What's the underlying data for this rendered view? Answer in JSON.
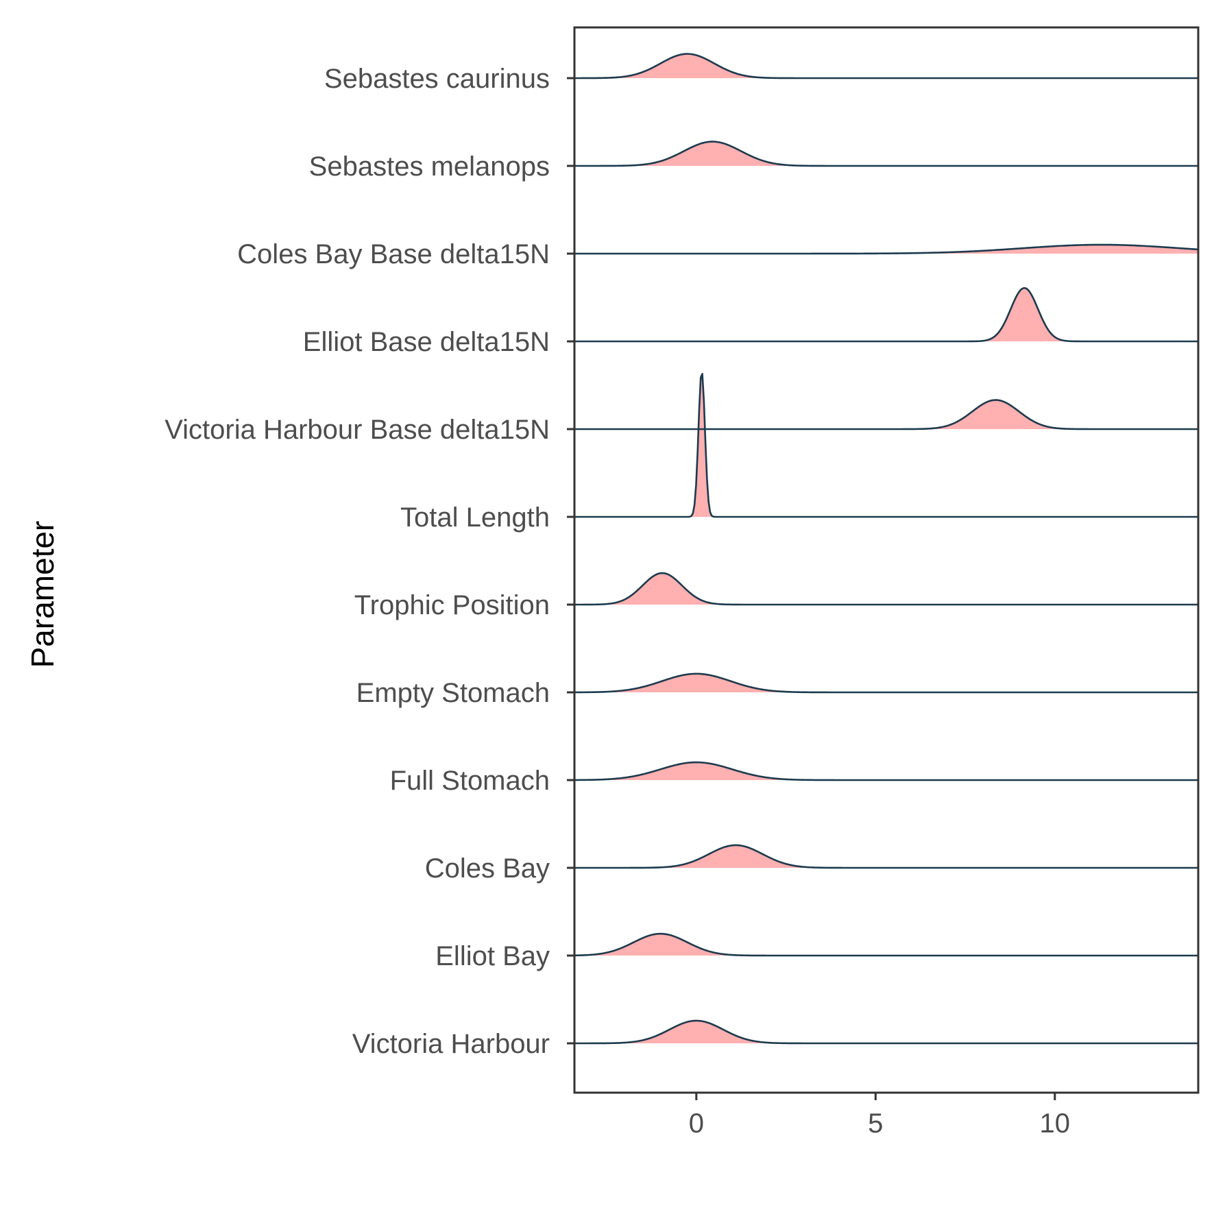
{
  "chart_data": {
    "type": "ridgeline",
    "title": "",
    "xlabel": "",
    "ylabel": "Parameter",
    "xlim": [
      -3.4,
      14
    ],
    "x_ticks": [
      0,
      5,
      10
    ],
    "x_tick_labels": [
      "0",
      "5",
      "10"
    ],
    "grid": false,
    "fill_color": "#ffb0b0",
    "line_color": "#1c3a4e",
    "categories": [
      "Sebastes caurinus",
      "Sebastes melanops",
      "Coles Bay Base delta15N",
      "Elliot Base delta15N",
      "Victoria Harbour Base delta15N",
      "Total Length",
      "Trophic Position",
      "Empty Stomach",
      "Full Stomach",
      "Coles Bay",
      "Elliot Bay",
      "Victoria Harbour"
    ],
    "series": [
      {
        "name": "Sebastes caurinus",
        "mean": -0.25,
        "sd": 0.75,
        "peak_height": 0.3
      },
      {
        "name": "Sebastes melanops",
        "mean": 0.45,
        "sd": 0.8,
        "peak_height": 0.3
      },
      {
        "name": "Coles Bay Base delta15N",
        "mean": 11.3,
        "sd": 2.2,
        "peak_height": 0.11
      },
      {
        "name": "Elliot Base delta15N",
        "mean": 9.15,
        "sd": 0.38,
        "peak_height": 0.66
      },
      {
        "name": "Victoria Harbour Base delta15N",
        "mean": 8.35,
        "sd": 0.65,
        "peak_height": 0.36
      },
      {
        "name": "Total Length",
        "mean": 0.15,
        "sd": 0.09,
        "peak_height": 1.8
      },
      {
        "name": "Trophic Position",
        "mean": -0.95,
        "sd": 0.55,
        "peak_height": 0.39
      },
      {
        "name": "Empty Stomach",
        "mean": 0.0,
        "sd": 0.95,
        "peak_height": 0.23
      },
      {
        "name": "Full Stomach",
        "mean": 0.0,
        "sd": 1.0,
        "peak_height": 0.22
      },
      {
        "name": "Coles Bay",
        "mean": 1.1,
        "sd": 0.75,
        "peak_height": 0.28
      },
      {
        "name": "Elliot Bay",
        "mean": -1.0,
        "sd": 0.75,
        "peak_height": 0.27
      },
      {
        "name": "Victoria Harbour",
        "mean": 0.0,
        "sd": 0.75,
        "peak_height": 0.28
      }
    ]
  }
}
